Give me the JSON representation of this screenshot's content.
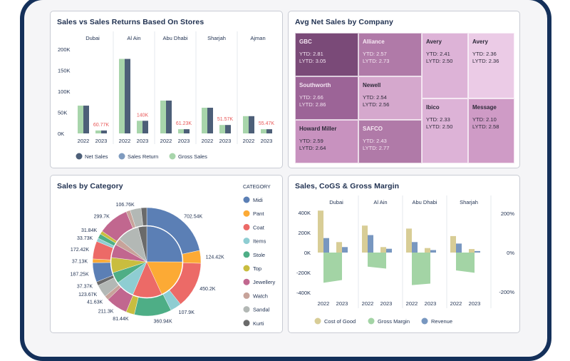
{
  "chart_data": [
    {
      "type": "bar",
      "title": "Sales vs Sales Returns Based On Stores",
      "groups": [
        "Dubai",
        "Al Ain",
        "Abu Dhabi",
        "Sharjah",
        "Ajman"
      ],
      "categories": [
        "2022",
        "2023"
      ],
      "ylim": [
        0,
        200000
      ],
      "yticks": [
        0,
        50000,
        100000,
        150000,
        200000
      ],
      "ytick_labels": [
        "0K",
        "50K",
        "100K",
        "150K",
        "200K"
      ],
      "grid": false,
      "legend": "bottom",
      "series": [
        {
          "name": "Net Sales",
          "color": "#4d5f78",
          "values": [
            [
              66000,
              7000
            ],
            [
              177000,
              30000
            ],
            [
              78000,
              10000
            ],
            [
              61000,
              20000
            ],
            [
              41000,
              10000
            ]
          ]
        },
        {
          "name": "Sales Return",
          "color": "#7f9bbf",
          "values": null
        },
        {
          "name": "Gross Sales",
          "color": "#a8d5ab",
          "values": [
            [
              66000,
              7000
            ],
            [
              177000,
              30000
            ],
            [
              78000,
              10000
            ],
            [
              61000,
              20000
            ],
            [
              41000,
              10000
            ]
          ]
        }
      ],
      "data_labels_2023": [
        "60.77K",
        "140K",
        "61.23K",
        "51.57K",
        "55.47K"
      ],
      "data_label_color": "#e85757"
    },
    {
      "type": "treemap",
      "title": "Avg Net Sales by Company",
      "tiles": [
        {
          "name": "GBC",
          "ytd": "YTD: 2.81",
          "lytd": "LYTD: 3.05",
          "color": "#7a4a78",
          "text_color": "#f3e4f1"
        },
        {
          "name": "Alliance",
          "ytd": "YTD: 2.57",
          "lytd": "LYTD: 2.73",
          "color": "#b07aa8",
          "text_color": "#f6e8f3"
        },
        {
          "name": "Southworth",
          "ytd": "YTD: 2.66",
          "lytd": "LYTD: 2.86",
          "color": "#9c6497",
          "text_color": "#f3e4f1"
        },
        {
          "name": "Newell",
          "ytd": "YTD: 2.54",
          "lytd": "LYTD: 2.56",
          "color": "#d5a8cd",
          "text_color": "#2e2a3a"
        },
        {
          "name": "Howard Miller",
          "ytd": "YTD: 2.59",
          "lytd": "LYTD: 2.64",
          "color": "#c892bf",
          "text_color": "#2e2a3a"
        },
        {
          "name": "SAFCO",
          "ytd": "YTD: 2.43",
          "lytd": "LYTD: 2.77",
          "color": "#b07aa8",
          "text_color": "#f6e8f3"
        },
        {
          "name": "Avery",
          "ytd": "YTD: 2.41",
          "lytd": "LYTD: 2.50",
          "color": "#ddb3d7",
          "text_color": "#2e2a3a"
        },
        {
          "name": "Avery",
          "ytd": "YTD: 2.36",
          "lytd": "LYTD: 2.36",
          "color": "#ebcbe6",
          "text_color": "#2e2a3a"
        },
        {
          "name": "Ibico",
          "ytd": "YTD: 2.33",
          "lytd": "LYTD: 2.50",
          "color": "#ddb3d7",
          "text_color": "#2e2a3a"
        },
        {
          "name": "Message",
          "ytd": "YTD: 2.10",
          "lytd": "LYTD: 2.58",
          "color": "#cf9bc6",
          "text_color": "#2e2a3a"
        }
      ]
    },
    {
      "type": "pie",
      "title": "Sales by Category",
      "legend_title": "CATEGORY",
      "legend": "right",
      "categories": [
        {
          "name": "Midi",
          "color": "#5b7fb5"
        },
        {
          "name": "Pant",
          "color": "#fcaa35"
        },
        {
          "name": "Coat",
          "color": "#ec6a67"
        },
        {
          "name": "Items",
          "color": "#8ecdd2"
        },
        {
          "name": "Stole",
          "color": "#4eae86"
        },
        {
          "name": "Top",
          "color": "#c9bd3f"
        },
        {
          "name": "Jewellery",
          "color": "#c1678f"
        },
        {
          "name": "Watch",
          "color": "#c7a39a"
        },
        {
          "name": "Sandal",
          "color": "#b3b8b5"
        },
        {
          "name": "Kurti",
          "color": "#6a6a6a"
        }
      ],
      "inner_share_percent": [
        25,
        18,
        13.3,
        8.6,
        5,
        6.9,
        6.1,
        3,
        10,
        3.9
      ],
      "outer_ring": [
        {
          "category": "Midi",
          "value": 702540,
          "label": "702.54K"
        },
        {
          "category": "Pant",
          "value": 124420,
          "label": "124.42K"
        },
        {
          "category": "Coat",
          "value": 450200,
          "label": "450.2K"
        },
        {
          "category": "Items",
          "value": 107900,
          "label": "107.9K"
        },
        {
          "category": "Stole",
          "value": 360940,
          "label": "360.94K"
        },
        {
          "category": "Top",
          "value": 81440,
          "label": "81.44K"
        },
        {
          "category": "Jewellery",
          "value": 211300,
          "label": "211.3K"
        },
        {
          "category": "Watch",
          "value": 41630,
          "label": "41.63K"
        },
        {
          "category": "Sandal",
          "value": 123670,
          "label": "123.67K"
        },
        {
          "category": "Kurti",
          "value": 37370,
          "label": "37.37K"
        },
        {
          "category": "Midi",
          "value": 187250,
          "label": "187.25K"
        },
        {
          "category": "Pant",
          "value": 37130,
          "label": "37.13K"
        },
        {
          "category": "Coat",
          "value": 172420,
          "label": "172.42K"
        },
        {
          "category": "Items",
          "value": 33730,
          "label": "33.73K"
        },
        {
          "category": "Stole",
          "value": 45000,
          "label": ""
        },
        {
          "category": "Top",
          "value": 31840,
          "label": "31.84K"
        },
        {
          "category": "Jewellery",
          "value": 299700,
          "label": "299.7K"
        },
        {
          "category": "Watch",
          "value": 40000,
          "label": ""
        },
        {
          "category": "Sandal",
          "value": 106760,
          "label": "106.76K"
        },
        {
          "category": "Kurti",
          "value": 55000,
          "label": ""
        }
      ]
    },
    {
      "type": "bar",
      "title": "Sales, CoGS & Gross Margin",
      "groups": [
        "Dubai",
        "Al Ain",
        "Abu Dhabi",
        "Sharjah"
      ],
      "categories": [
        "2022",
        "2023"
      ],
      "ylim": [
        -400000,
        400000
      ],
      "ytick_labels": [
        "400K",
        "200K",
        "0K",
        "-200K",
        "-400K"
      ],
      "y2lim_percent": [
        -200,
        200
      ],
      "y2tick_labels": [
        "200%",
        "0%",
        "-200%"
      ],
      "legend": "bottom",
      "series": [
        {
          "name": "Cost of Good",
          "type": "bar",
          "color": "#d8cd96",
          "values": [
            [
              420000,
              105000
            ],
            [
              270000,
              55000
            ],
            [
              240000,
              45000
            ],
            [
              165000,
              35000
            ]
          ]
        },
        {
          "name": "Gross Margin",
          "type": "area",
          "axis": "right",
          "unit": "%",
          "color": "#a3d4a5",
          "values": [
            [
              -154,
              -140
            ],
            [
              -72,
              -82
            ],
            [
              -166,
              -158
            ],
            [
              -91,
              -103
            ]
          ]
        },
        {
          "name": "Revenue",
          "type": "bar",
          "color": "#7897c0",
          "values": [
            [
              145000,
              55000
            ],
            [
              175000,
              38000
            ],
            [
              105000,
              25000
            ],
            [
              90000,
              15000
            ]
          ]
        }
      ]
    }
  ]
}
